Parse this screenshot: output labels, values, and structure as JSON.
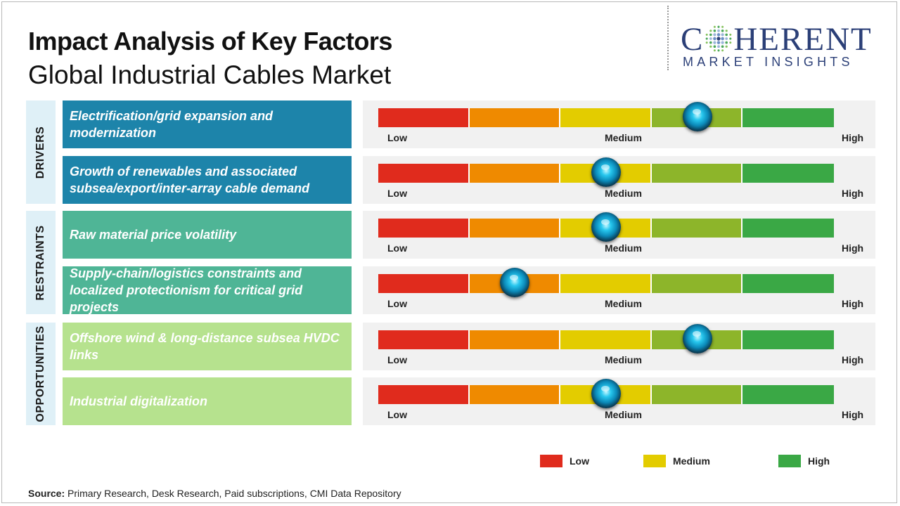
{
  "header": {
    "title": "Impact Analysis of Key Factors",
    "subtitle": "Global Industrial Cables Market"
  },
  "logo": {
    "main": "COHERENT",
    "main_before_o": "C",
    "main_after_o": "HERENT",
    "sub": "MARKET INSIGHTS"
  },
  "colors": {
    "scale": [
      "#e02b1d",
      "#ef8a00",
      "#e3cc00",
      "#8db52a",
      "#3aa845"
    ],
    "drivers_bg": "#1d84aa",
    "restraints_bg": "#4fb596",
    "opportunities_bg": "#b6e28e",
    "section_bg": "#dff0f7"
  },
  "chart_data": {
    "type": "table",
    "scale_labels": [
      "Low",
      "Medium",
      "High"
    ],
    "scale_segments": 5,
    "sections": [
      {
        "name": "DRIVERS",
        "factors": [
          {
            "text": "Electrification/grid expansion and modernization",
            "impact_segment": 4
          },
          {
            "text": "Growth of renewables and associated subsea/export/inter-array cable demand",
            "impact_segment": 3
          }
        ]
      },
      {
        "name": "RESTRAINTS",
        "factors": [
          {
            "text": "Raw material price volatility",
            "impact_segment": 3
          },
          {
            "text": "Supply-chain/logistics constraints and localized protectionism for critical grid projects",
            "impact_segment": 2
          }
        ]
      },
      {
        "name": "OPPORTUNITIES",
        "factors": [
          {
            "text": "Offshore wind & long-distance subsea HVDC links",
            "impact_segment": 4
          },
          {
            "text": "Industrial digitalization",
            "impact_segment": 3
          }
        ]
      }
    ],
    "legend": [
      {
        "label": "Low",
        "color": "#e02b1d"
      },
      {
        "label": "Medium",
        "color": "#e3cc00"
      },
      {
        "label": "High",
        "color": "#3aa845"
      }
    ]
  },
  "source": {
    "label": "Source:",
    "text": "Primary Research, Desk Research, Paid subscriptions, CMI Data Repository"
  }
}
